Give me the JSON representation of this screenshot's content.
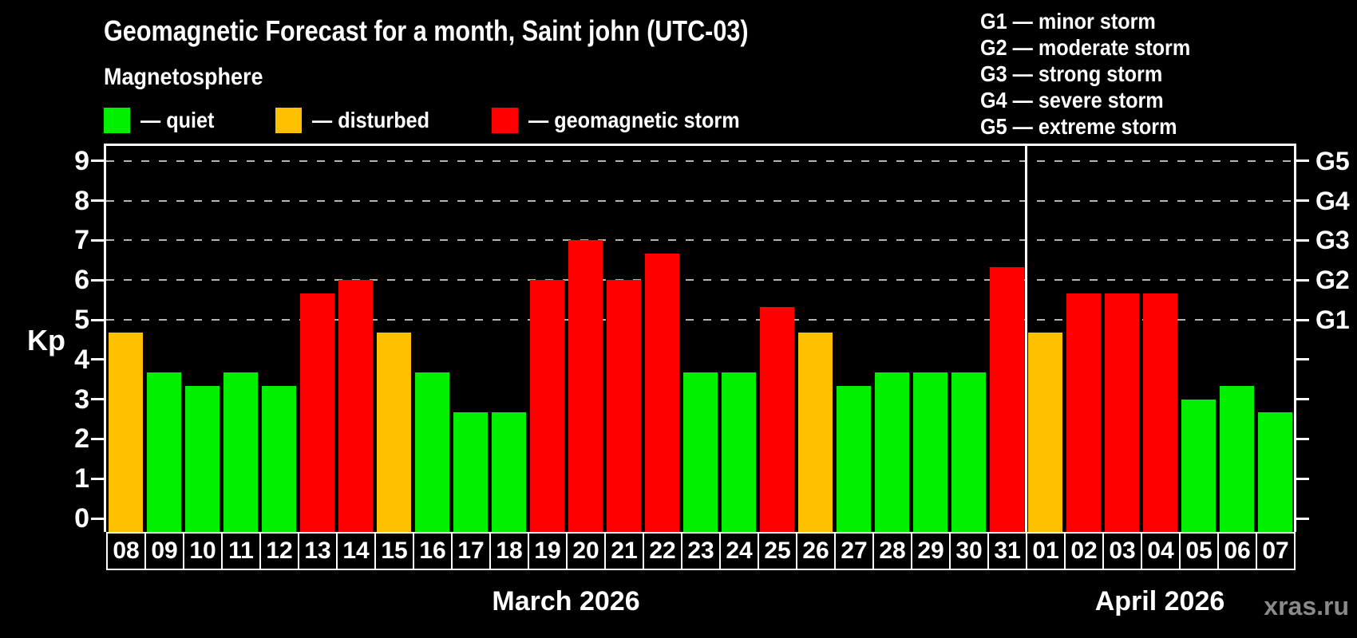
{
  "header": {
    "title": "Geomagnetic Forecast for a month, Saint john (UTC-03)",
    "subtitle": "Magnetosphere"
  },
  "legend": {
    "items": [
      {
        "status": "quiet",
        "label": "— quiet"
      },
      {
        "status": "disturbed",
        "label": "— disturbed"
      },
      {
        "status": "storm",
        "label": "— geomagnetic storm"
      }
    ]
  },
  "g_legend": {
    "items": [
      {
        "label": "G1 — minor storm"
      },
      {
        "label": "G2 — moderate storm"
      },
      {
        "label": "G3 — strong storm"
      },
      {
        "label": "G4 — severe storm"
      },
      {
        "label": "G5 — extreme storm"
      }
    ]
  },
  "watermark": "xras.ru",
  "chart_data": {
    "type": "bar",
    "title": "Geomagnetic Forecast for a month, Saint john (UTC-03)",
    "ylabel": "Kp",
    "ylim": [
      0,
      9
    ],
    "y_ticks": [
      0,
      1,
      2,
      3,
      4,
      5,
      6,
      7,
      8,
      9
    ],
    "gridlines_at": [
      5,
      6,
      7,
      8,
      9
    ],
    "grid": "dashed horizontal at storm levels only",
    "legend_position": "top",
    "right_axis_labels": [
      {
        "kp": 5,
        "label": "G1"
      },
      {
        "kp": 6,
        "label": "G2"
      },
      {
        "kp": 7,
        "label": "G3"
      },
      {
        "kp": 8,
        "label": "G4"
      },
      {
        "kp": 9,
        "label": "G5"
      }
    ],
    "sections": [
      {
        "label": "March 2026",
        "days": [
          "08",
          "09",
          "10",
          "11",
          "12",
          "13",
          "14",
          "15",
          "16",
          "17",
          "18",
          "19",
          "20",
          "21",
          "22",
          "23",
          "24",
          "25",
          "26",
          "27",
          "28",
          "29",
          "30",
          "31"
        ]
      },
      {
        "label": "April 2026",
        "days": [
          "01",
          "02",
          "03",
          "04",
          "05",
          "06",
          "07"
        ]
      }
    ],
    "categories": [
      "08",
      "09",
      "10",
      "11",
      "12",
      "13",
      "14",
      "15",
      "16",
      "17",
      "18",
      "19",
      "20",
      "21",
      "22",
      "23",
      "24",
      "25",
      "26",
      "27",
      "28",
      "29",
      "30",
      "31",
      "01",
      "02",
      "03",
      "04",
      "05",
      "06",
      "07"
    ],
    "values": [
      4.67,
      3.67,
      3.33,
      3.67,
      3.33,
      5.67,
      6.0,
      4.67,
      3.67,
      2.67,
      2.67,
      6.0,
      7.0,
      6.0,
      6.67,
      3.67,
      3.67,
      5.33,
      4.67,
      3.33,
      3.67,
      3.67,
      3.67,
      6.33,
      4.67,
      5.67,
      5.67,
      5.67,
      3.0,
      3.33,
      2.67
    ],
    "status": [
      "disturbed",
      "quiet",
      "quiet",
      "quiet",
      "quiet",
      "storm",
      "storm",
      "disturbed",
      "quiet",
      "quiet",
      "quiet",
      "storm",
      "storm",
      "storm",
      "storm",
      "quiet",
      "quiet",
      "storm",
      "disturbed",
      "quiet",
      "quiet",
      "quiet",
      "quiet",
      "storm",
      "disturbed",
      "storm",
      "storm",
      "storm",
      "quiet",
      "quiet",
      "quiet"
    ],
    "colors": {
      "quiet": "#00f000",
      "disturbed": "#ffc000",
      "storm": "#ff0000"
    },
    "axis_color": "#ffffff",
    "gridline_color": "#b4b4b4",
    "background": "#000000"
  }
}
